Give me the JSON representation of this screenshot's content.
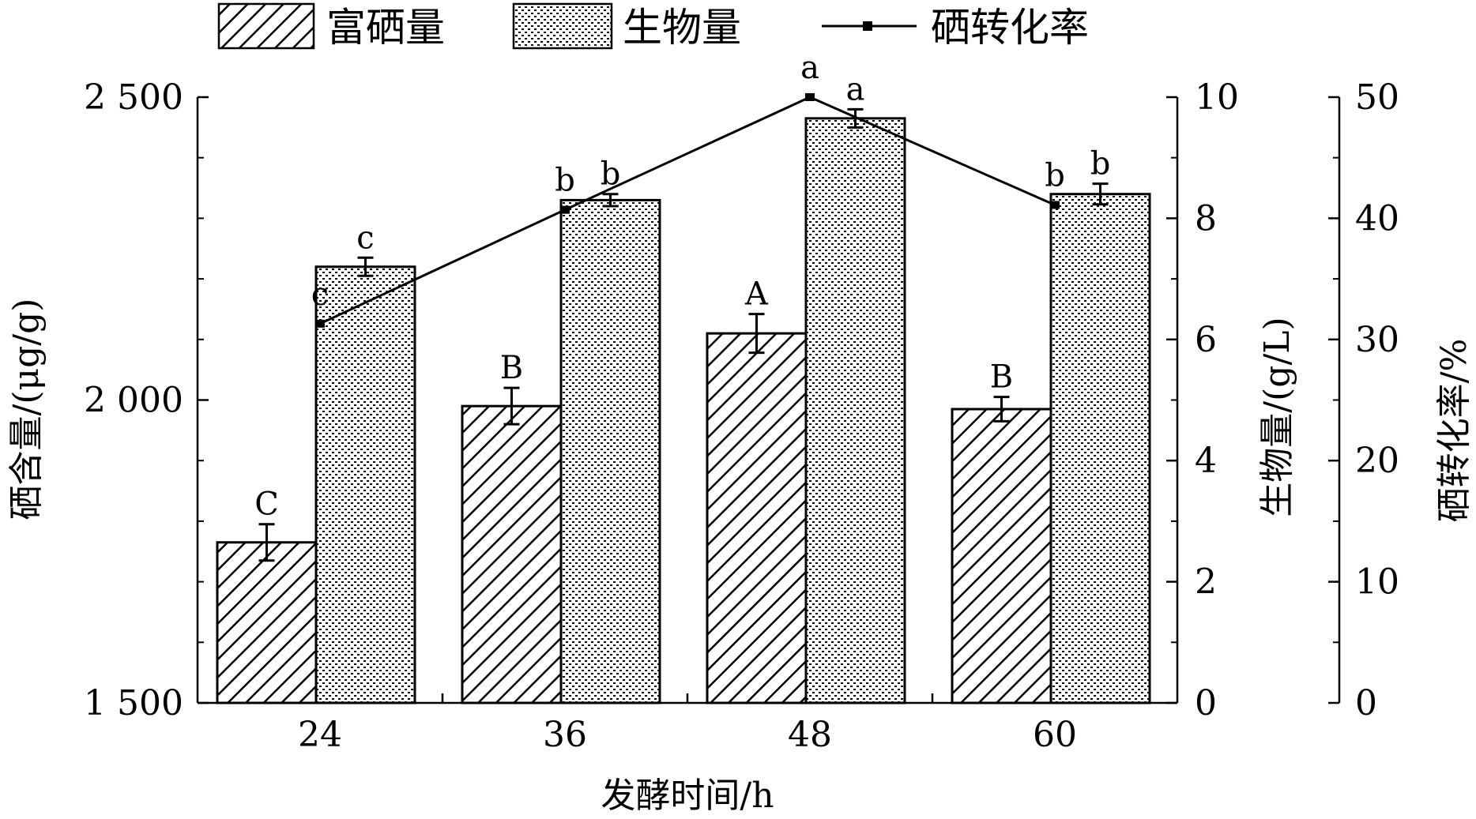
{
  "chart_data": {
    "type": "bar",
    "x": {
      "label": "发酵时间/h",
      "categories": [
        "24",
        "36",
        "48",
        "60"
      ]
    },
    "axes": {
      "left": {
        "label": "硒含量/(μg/g)",
        "ylim": [
          1500,
          2500
        ],
        "ticks": [
          1500,
          2000,
          2500
        ],
        "tick_labels": [
          "1 500",
          "2 000",
          "2 500"
        ]
      },
      "right1": {
        "label": "生物量/(g/L)",
        "ylim": [
          0,
          10
        ],
        "ticks": [
          0,
          2,
          4,
          6,
          8,
          10
        ],
        "tick_labels": [
          "0",
          "2",
          "4",
          "6",
          "8",
          "10"
        ]
      },
      "right2": {
        "label": "硒转化率/%",
        "ylim": [
          0,
          50
        ],
        "ticks": [
          0,
          10,
          20,
          30,
          40,
          50
        ],
        "tick_labels": [
          "0",
          "10",
          "20",
          "30",
          "40",
          "50"
        ]
      }
    },
    "legend": {
      "position": "top",
      "entries": [
        "富硒量",
        "生物量",
        "硒转化率"
      ]
    },
    "series": [
      {
        "name": "富硒量",
        "kind": "bar",
        "axis": "left",
        "pattern": "diagonal-hatch",
        "values": [
          1765,
          1990,
          2110,
          1985
        ],
        "errors": [
          30,
          30,
          32,
          20
        ],
        "labels": [
          "C",
          "B",
          "A",
          "B"
        ]
      },
      {
        "name": "生物量",
        "kind": "bar",
        "axis": "right1",
        "pattern": "dotted-horizontal",
        "values": [
          7.2,
          8.3,
          9.65,
          8.4
        ],
        "errors": [
          0.15,
          0.1,
          0.15,
          0.17
        ],
        "labels": [
          "c",
          "b",
          "a",
          "b"
        ]
      },
      {
        "name": "硒转化率",
        "kind": "line",
        "axis": "right2",
        "marker": "square",
        "values": [
          31.3,
          40.7,
          50.0,
          41.1
        ],
        "labels": [
          "c",
          "b",
          "a",
          "b"
        ]
      }
    ]
  }
}
